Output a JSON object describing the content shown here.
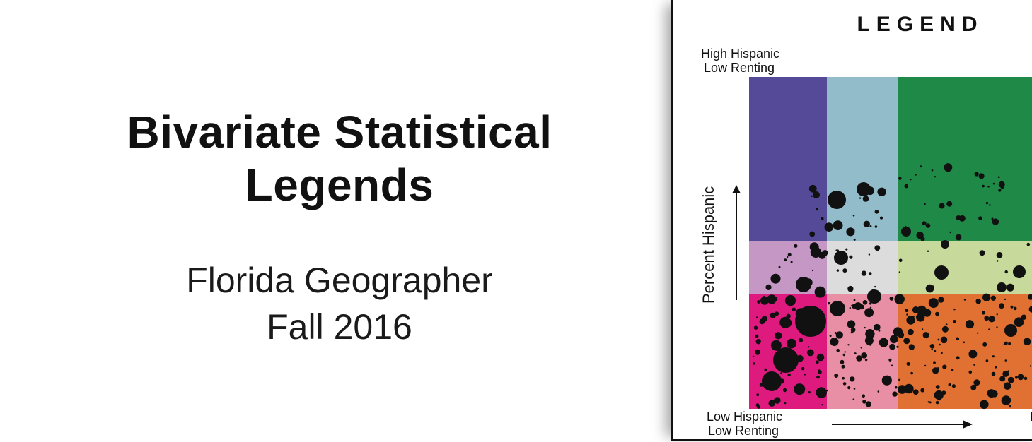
{
  "slide": {
    "title_line1": "Bivariate Statistical",
    "title_line2": "Legends",
    "subtitle_line1": "Florida Geographer",
    "subtitle_line2": "Fall 2016"
  },
  "legend": {
    "heading": "LEGEND",
    "top_label_line1": "High Hispanic",
    "top_label_line2": "Low Renting",
    "y_axis_label": "Percent Hispanic",
    "bottom_label_line1": "Low Hispanic",
    "bottom_label_line2": "Low Renting",
    "right_edge_letter": "L",
    "colors": {
      "r0c0": "#554a97",
      "r0c1": "#93bccb",
      "r0c2": "#1f8a48",
      "r1c0": "#c597c5",
      "r1c1": "#dcdcdc",
      "r1c2": "#c7d99b",
      "r2c0": "#de1a7f",
      "r2c1": "#e88fa5",
      "r2c2": "#e07133"
    }
  }
}
